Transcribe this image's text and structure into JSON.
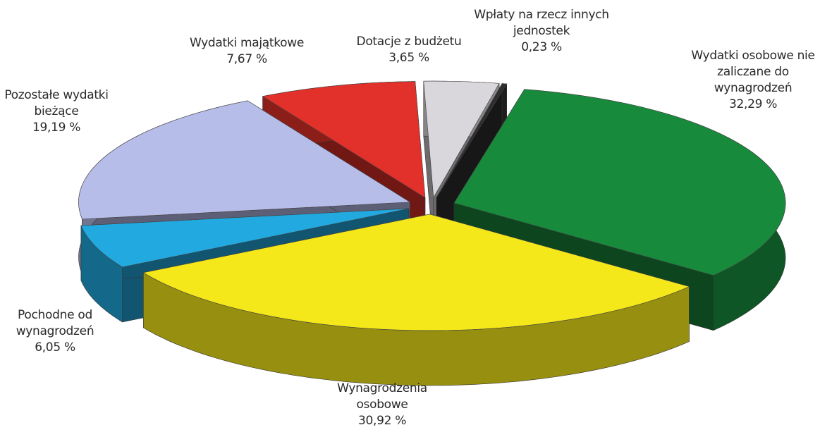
{
  "chart_data": {
    "type": "pie3d",
    "categories": [
      "Dotacje z budżetu",
      "Wpłaty na rzecz innych jednostek",
      "Wydatki osobowe nie zaliczane do wynagrodzeń",
      "Wynagrodzenia osobowe",
      "Pochodne od wynagrodzeń",
      "Pozostałe wydatki bieżące",
      "Wydatki majątkowe"
    ],
    "values": [
      3.65,
      0.23,
      32.29,
      30.92,
      6.05,
      19.19,
      7.67
    ],
    "value_labels": [
      "3,65 %",
      "0,23 %",
      "32,29 %",
      "30,92 %",
      "6,05 %",
      "19,19 %",
      "7,67 %"
    ],
    "colors": [
      "#d9d6dc",
      "#2e2e2e",
      "#178a3c",
      "#f4e71a",
      "#21a9e0",
      "#b7bde9",
      "#e2302a"
    ]
  }
}
